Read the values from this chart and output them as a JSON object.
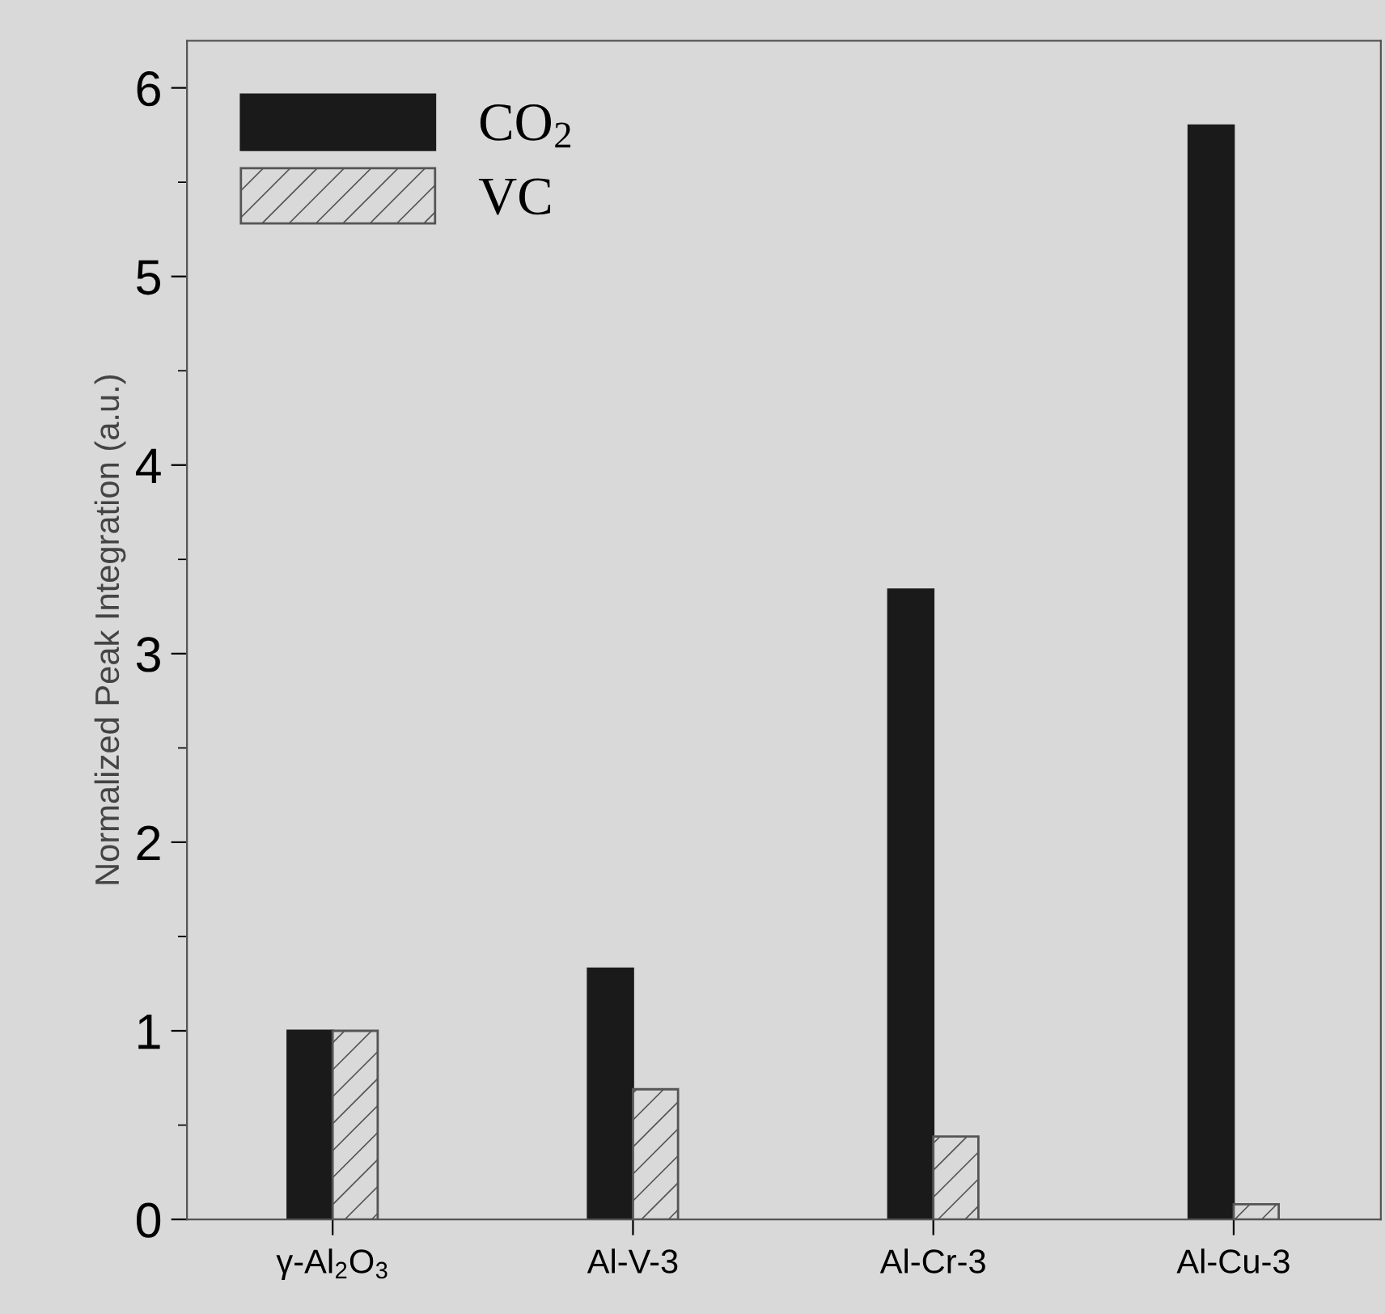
{
  "chart_data": {
    "type": "bar",
    "ylabel": "Normalized Peak Integration (a.u.)",
    "categories": [
      "γ-Al$_{2}$O$_{3}$",
      "Al-V-3",
      "Al-Cr-3",
      "Al-Cu-3"
    ],
    "series": [
      {
        "name": "CO$_{2}$",
        "color": "#1a1a1a",
        "values": [
          1.0,
          1.33,
          3.34,
          5.8
        ]
      },
      {
        "name": "VC",
        "color": "#555555",
        "values": [
          1.0,
          0.69,
          0.44,
          0.08
        ]
      }
    ],
    "ylim": [
      0,
      6.25
    ],
    "yticks": [
      0,
      1,
      2,
      3,
      4,
      5,
      6
    ],
    "grid": false,
    "legend": "top left"
  }
}
